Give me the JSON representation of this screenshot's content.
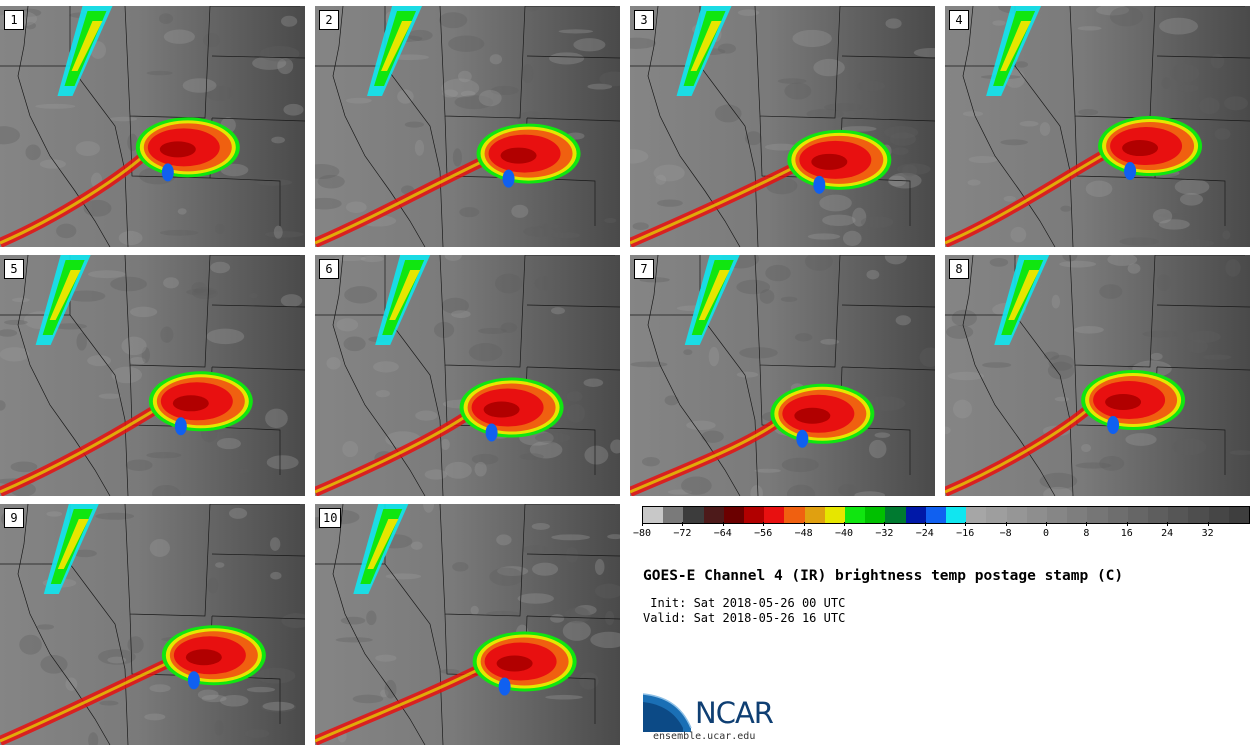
{
  "panels": [
    {
      "label": "1"
    },
    {
      "label": "2"
    },
    {
      "label": "3"
    },
    {
      "label": "4"
    },
    {
      "label": "5"
    },
    {
      "label": "6"
    },
    {
      "label": "7"
    },
    {
      "label": "8"
    },
    {
      "label": "9"
    },
    {
      "label": "10"
    }
  ],
  "colorbar": {
    "colors": [
      "#c8c8c8",
      "#7a7a7a",
      "#3c3c3c",
      "#4d1a1a",
      "#6b0000",
      "#b10000",
      "#e81010",
      "#f06010",
      "#e0a010",
      "#e6e600",
      "#10e610",
      "#00c000",
      "#007a30",
      "#0018a8",
      "#1060f0",
      "#10e6f0",
      "#a6a6a6",
      "#9e9e9e",
      "#969696",
      "#8e8e8e",
      "#868686",
      "#7e7e7e",
      "#767676",
      "#6e6e6e",
      "#666666",
      "#5e5e5e",
      "#565656",
      "#4e4e4e",
      "#464646",
      "#3e3e3e"
    ],
    "tick_labels": [
      "−80",
      "−72",
      "−64",
      "−56",
      "−48",
      "−40",
      "−32",
      "−24",
      "−16",
      "−8",
      "0",
      "8",
      "16",
      "24",
      "32"
    ]
  },
  "title": "GOES-E Channel 4 (IR) brightness temp postage stamp (C)",
  "init_line": " Init: Sat 2018-05-26 00 UTC",
  "valid_line": "Valid: Sat 2018-05-26 16 UTC",
  "logo_text": "NCAR",
  "logo_url": "ensemble.ucar.edu"
}
